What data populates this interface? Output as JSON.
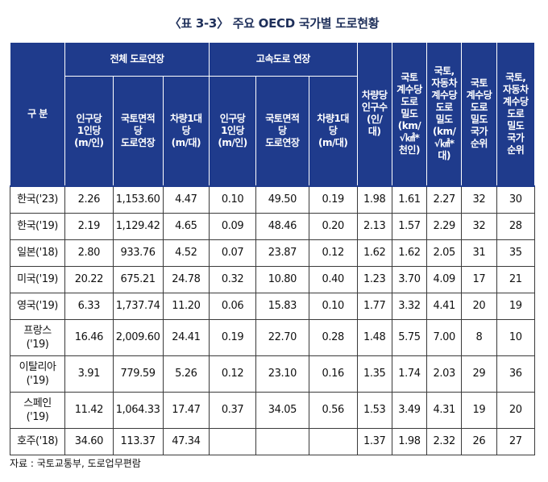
{
  "title": "〈표 3-3〉 주요 OECD 국가별 도로현황",
  "header": {
    "category": "구 분",
    "group_total": "전체 도로연장",
    "group_highway": "고속도로 연장",
    "per_person": "인구당\n1인당\n(m/인)",
    "per_area": "국토면적\n당\n도로연장",
    "per_vehicle": "차량1대\n당\n(m/대)",
    "persons_per_vehicle": "차량당\n인구수\n(인/\n대)",
    "density_land": "국토\n계수당\n도로\n밀도\n(km/\n√㎢*\n천인)",
    "density_land_vehicle": "국토,\n자동차\n계수당\n도로\n밀도\n(km/\n√㎢*\n대)",
    "rank_land": "국토\n계수당\n도로\n밀도\n국가\n순위",
    "rank_land_vehicle": "국토,\n자동차\n계수당\n도로\n밀도\n국가\n순위"
  },
  "rows": [
    {
      "name": "한국('23)",
      "c1": "2.26",
      "c2": "1,153.60",
      "c3": "4.47",
      "c4": "0.10",
      "c5": "49.50",
      "c6": "0.19",
      "c7": "1.98",
      "c8": "1.61",
      "c9": "2.27",
      "c10": "32",
      "c11": "30"
    },
    {
      "name": "한국('19)",
      "c1": "2.19",
      "c2": "1,129.42",
      "c3": "4.65",
      "c4": "0.09",
      "c5": "48.46",
      "c6": "0.20",
      "c7": "2.13",
      "c8": "1.57",
      "c9": "2.29",
      "c10": "32",
      "c11": "28"
    },
    {
      "name": "일본('18)",
      "c1": "2.80",
      "c2": "933.76",
      "c3": "4.52",
      "c4": "0.07",
      "c5": "23.87",
      "c6": "0.12",
      "c7": "1.62",
      "c8": "1.62",
      "c9": "2.05",
      "c10": "31",
      "c11": "35"
    },
    {
      "name": "미국('19)",
      "c1": "20.22",
      "c2": "675.21",
      "c3": "24.78",
      "c4": "0.32",
      "c5": "10.80",
      "c6": "0.40",
      "c7": "1.23",
      "c8": "3.70",
      "c9": "4.09",
      "c10": "17",
      "c11": "21"
    },
    {
      "name": "영국('19)",
      "c1": "6.33",
      "c2": "1,737.74",
      "c3": "11.20",
      "c4": "0.06",
      "c5": "15.83",
      "c6": "0.10",
      "c7": "1.77",
      "c8": "3.32",
      "c9": "4.41",
      "c10": "20",
      "c11": "19"
    },
    {
      "name": "프랑스\n('19)",
      "c1": "16.46",
      "c2": "2,009.60",
      "c3": "24.41",
      "c4": "0.19",
      "c5": "22.70",
      "c6": "0.28",
      "c7": "1.48",
      "c8": "5.75",
      "c9": "7.00",
      "c10": "8",
      "c11": "10"
    },
    {
      "name": "이탈리아\n('19)",
      "c1": "3.91",
      "c2": "779.59",
      "c3": "5.26",
      "c4": "0.12",
      "c5": "23.10",
      "c6": "0.16",
      "c7": "1.35",
      "c8": "1.74",
      "c9": "2.03",
      "c10": "29",
      "c11": "36"
    },
    {
      "name": "스페인\n('19)",
      "c1": "11.42",
      "c2": "1,064.33",
      "c3": "17.47",
      "c4": "0.37",
      "c5": "34.05",
      "c6": "0.56",
      "c7": "1.53",
      "c8": "3.49",
      "c9": "4.31",
      "c10": "19",
      "c11": "20"
    },
    {
      "name": "호주('18)",
      "c1": "34.60",
      "c2": "113.37",
      "c3": "47.34",
      "c4": "",
      "c5": "",
      "c6": "",
      "c7": "1.37",
      "c8": "1.98",
      "c9": "2.32",
      "c10": "26",
      "c11": "27"
    }
  ],
  "source_note": "자료 : 국토교통부, 도로업무편람"
}
